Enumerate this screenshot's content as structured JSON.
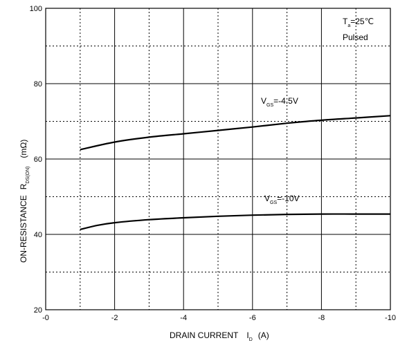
{
  "chart_data": {
    "type": "line",
    "title": "",
    "xlabel": {
      "main": "DRAIN CURRENT",
      "symbol": "I",
      "subscript": "D",
      "unit": "(A)"
    },
    "ylabel": {
      "main": "ON-RESISTANCE",
      "symbol": "R",
      "subscript": "DS(ON)",
      "unit": "(mΩ)"
    },
    "xlim": [
      0,
      -10
    ],
    "ylim": [
      20,
      100
    ],
    "grid": true,
    "x_ticks": [
      "-0",
      "-2",
      "-4",
      "-6",
      "-8",
      "-10"
    ],
    "y_ticks": [
      "20",
      "40",
      "60",
      "80",
      "100"
    ],
    "annotations": {
      "temp": {
        "symbol": "T",
        "subscript": "a",
        "value": "=25℃"
      },
      "mode": "Pulsed"
    },
    "series": [
      {
        "label": {
          "symbol": "V",
          "subscript": "GS",
          "value": "=-4.5V"
        },
        "x": [
          -1,
          -2,
          -3,
          -4,
          -5,
          -6,
          -7,
          -8,
          -9,
          -10
        ],
        "y": [
          62.5,
          64.5,
          65.8,
          66.7,
          67.6,
          68.5,
          69.5,
          70.3,
          70.9,
          71.5
        ]
      },
      {
        "label": {
          "symbol": "V",
          "subscript": "GS",
          "value": "=-10V"
        },
        "x": [
          -1,
          -1.5,
          -2,
          -3,
          -4,
          -5,
          -6,
          -7,
          -8,
          -9,
          -10
        ],
        "y": [
          41.3,
          42.4,
          43.1,
          43.9,
          44.4,
          44.8,
          45.1,
          45.3,
          45.4,
          45.4,
          45.4
        ]
      }
    ]
  }
}
